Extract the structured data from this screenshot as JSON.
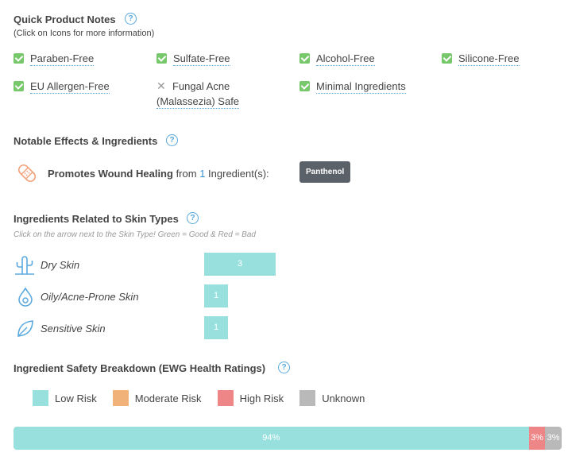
{
  "quick_notes": {
    "title": "Quick Product Notes",
    "subtitle": "(Click on Icons for more information)",
    "items": [
      {
        "label": "Paraben-Free",
        "status": "check"
      },
      {
        "label": "Sulfate-Free",
        "status": "check"
      },
      {
        "label": "Alcohol-Free",
        "status": "check"
      },
      {
        "label": "Silicone-Free",
        "status": "check"
      },
      {
        "label": "EU Allergen-Free",
        "status": "check"
      },
      {
        "label_line1": "Fungal Acne",
        "label_line2": "(Malassezia) Safe",
        "status": "cross"
      },
      {
        "label": "Minimal Ingredients",
        "status": "check"
      }
    ]
  },
  "effects": {
    "title": "Notable Effects & Ingredients",
    "icon": "bandage-icon",
    "effect_name": "Promotes Wound Healing",
    "from_text": "from",
    "count": "1",
    "suffix": "Ingredient(s):",
    "ingredient": "Panthenol"
  },
  "skin_types": {
    "title": "Ingredients Related to Skin Types",
    "note": "Click on the arrow next to the Skin Type! Green = Good & Red = Bad",
    "rows": [
      {
        "label": "Dry Skin",
        "count": "3",
        "icon": "cactus-icon"
      },
      {
        "label": "Oily/Acne-Prone Skin",
        "count": "1",
        "icon": "droplet-icon"
      },
      {
        "label": "Sensitive Skin",
        "count": "1",
        "icon": "leaf-icon"
      }
    ]
  },
  "safety": {
    "title": "Ingredient Safety Breakdown (EWG Health Ratings)",
    "legend": [
      {
        "label": "Low Risk",
        "color": "#98e0dd"
      },
      {
        "label": "Moderate Risk",
        "color": "#f1b27a"
      },
      {
        "label": "High Risk",
        "color": "#ee8587"
      },
      {
        "label": "Unknown",
        "color": "#b9b9b9"
      }
    ],
    "segments": [
      {
        "label": "94%",
        "value": 94,
        "color": "#98e0dd"
      },
      {
        "label": "3%",
        "value": 3,
        "color": "#ee8587"
      },
      {
        "label": "3%",
        "value": 3,
        "color": "#b9b9b9"
      }
    ]
  },
  "help_glyph": "?"
}
